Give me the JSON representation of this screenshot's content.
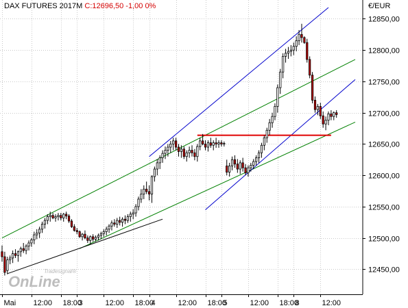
{
  "header": {
    "instrument": "DAX FUTURES 2017M",
    "change_text": "C:12696,50 -1,00 0%"
  },
  "unit_label": "€/EUR",
  "watermark": {
    "small": "Tradesignal®",
    "big": "OnLine"
  },
  "colors": {
    "candle_up": "#ffffff",
    "candle_down": "#c00000",
    "channel_green": "#008000",
    "channel_blue": "#0000cc",
    "support": "#e00000",
    "trend": "#000000",
    "grid": "#c8c8c8"
  },
  "chart_data": {
    "type": "candlestick",
    "title": "DAX FUTURES 2017M",
    "ylabel": "€/EUR",
    "ylim": [
      12410,
      12880
    ],
    "yticks": [
      12450,
      12500,
      12550,
      12600,
      12650,
      12700,
      12750,
      12800,
      12850
    ],
    "ytick_labels": [
      "12450,00",
      "12500,00",
      "12550,00",
      "12600,00",
      "12650,00",
      "12700,00",
      "12750,00",
      "12800,00",
      "12850,00"
    ],
    "x_range": [
      0,
      132
    ],
    "xticks": [
      {
        "i": 0,
        "label": "Mai"
      },
      {
        "i": 11,
        "label": "12:00"
      },
      {
        "i": 22,
        "label": "18:00"
      },
      {
        "i": 28,
        "label": "3"
      },
      {
        "i": 38,
        "label": "12:00"
      },
      {
        "i": 49,
        "label": "18:00"
      },
      {
        "i": 55,
        "label": "4"
      },
      {
        "i": 65,
        "label": "12:00"
      },
      {
        "i": 76,
        "label": "18:00"
      },
      {
        "i": 82,
        "label": "5"
      },
      {
        "i": 92,
        "label": "12:00"
      },
      {
        "i": 103,
        "label": "18:00"
      },
      {
        "i": 109,
        "label": "8"
      },
      {
        "i": 119,
        "label": "12:00"
      }
    ],
    "candles": [
      [
        12478,
        12488,
        12462,
        12470
      ],
      [
        12470,
        12478,
        12440,
        12445
      ],
      [
        12448,
        12470,
        12442,
        12465
      ],
      [
        12465,
        12472,
        12458,
        12468
      ],
      [
        12468,
        12480,
        12460,
        12475
      ],
      [
        12475,
        12482,
        12468,
        12472
      ],
      [
        12472,
        12480,
        12462,
        12478
      ],
      [
        12478,
        12486,
        12470,
        12483
      ],
      [
        12483,
        12492,
        12476,
        12480
      ],
      [
        12480,
        12490,
        12474,
        12487
      ],
      [
        12487,
        12496,
        12480,
        12492
      ],
      [
        12492,
        12500,
        12486,
        12497
      ],
      [
        12497,
        12510,
        12490,
        12505
      ],
      [
        12505,
        12514,
        12498,
        12508
      ],
      [
        12508,
        12518,
        12500,
        12514
      ],
      [
        12514,
        12526,
        12508,
        12522
      ],
      [
        12522,
        12532,
        12515,
        12528
      ],
      [
        12528,
        12538,
        12522,
        12534
      ],
      [
        12534,
        12542,
        12526,
        12536
      ],
      [
        12536,
        12540,
        12530,
        12532
      ],
      [
        12532,
        12538,
        12526,
        12534
      ],
      [
        12534,
        12540,
        12528,
        12536
      ],
      [
        12536,
        12540,
        12528,
        12532
      ],
      [
        12532,
        12540,
        12526,
        12538
      ],
      [
        12538,
        12542,
        12530,
        12535
      ],
      [
        12535,
        12538,
        12524,
        12527
      ],
      [
        12527,
        12530,
        12516,
        12518
      ],
      [
        12518,
        12522,
        12510,
        12512
      ],
      [
        12512,
        12516,
        12506,
        12510
      ],
      [
        12510,
        12512,
        12500,
        12502
      ],
      [
        12502,
        12508,
        12496,
        12506
      ],
      [
        12506,
        12512,
        12498,
        12500
      ],
      [
        12500,
        12504,
        12492,
        12496
      ],
      [
        12496,
        12504,
        12490,
        12502
      ],
      [
        12502,
        12506,
        12494,
        12498
      ],
      [
        12498,
        12504,
        12494,
        12501
      ],
      [
        12501,
        12507,
        12496,
        12504
      ],
      [
        12504,
        12510,
        12498,
        12507
      ],
      [
        12507,
        12514,
        12502,
        12510
      ],
      [
        12510,
        12518,
        12504,
        12514
      ],
      [
        12514,
        12522,
        12508,
        12519
      ],
      [
        12519,
        12528,
        12512,
        12524
      ],
      [
        12524,
        12530,
        12518,
        12522
      ],
      [
        12522,
        12532,
        12516,
        12528
      ],
      [
        12528,
        12534,
        12520,
        12525
      ],
      [
        12525,
        12533,
        12518,
        12530
      ],
      [
        12530,
        12536,
        12522,
        12528
      ],
      [
        12528,
        12538,
        12524,
        12534
      ],
      [
        12534,
        12542,
        12526,
        12538
      ],
      [
        12538,
        12546,
        12530,
        12540
      ],
      [
        12540,
        12554,
        12534,
        12550
      ],
      [
        12550,
        12566,
        12544,
        12562
      ],
      [
        12562,
        12578,
        12556,
        12570
      ],
      [
        12570,
        12584,
        12562,
        12578
      ],
      [
        12578,
        12590,
        12570,
        12574
      ],
      [
        12574,
        12584,
        12560,
        12570
      ],
      [
        12570,
        12600,
        12556,
        12598
      ],
      [
        12598,
        12614,
        12590,
        12610
      ],
      [
        12610,
        12626,
        12600,
        12620
      ],
      [
        12620,
        12632,
        12610,
        12628
      ],
      [
        12628,
        12640,
        12620,
        12635
      ],
      [
        12635,
        12646,
        12626,
        12640
      ],
      [
        12640,
        12650,
        12630,
        12645
      ],
      [
        12645,
        12655,
        12636,
        12650
      ],
      [
        12650,
        12660,
        12640,
        12655
      ],
      [
        12655,
        12660,
        12640,
        12645
      ],
      [
        12645,
        12650,
        12630,
        12638
      ],
      [
        12638,
        12648,
        12628,
        12642
      ],
      [
        12642,
        12646,
        12626,
        12630
      ],
      [
        12630,
        12640,
        12622,
        12636
      ],
      [
        12636,
        12646,
        12628,
        12640
      ],
      [
        12640,
        12648,
        12630,
        12636
      ],
      [
        12636,
        12642,
        12624,
        12630
      ],
      [
        12630,
        12650,
        12622,
        12646
      ],
      [
        12646,
        12660,
        12640,
        12655
      ],
      [
        12655,
        12666,
        12648,
        12650
      ],
      [
        12650,
        12656,
        12640,
        12645
      ],
      [
        12645,
        12656,
        12638,
        12652
      ],
      [
        12652,
        12660,
        12644,
        12648
      ],
      [
        12648,
        12656,
        12640,
        12652
      ],
      [
        12652,
        12660,
        12644,
        12650
      ],
      [
        12650,
        12656,
        12644,
        12652
      ],
      [
        12652,
        12656,
        12646,
        12650
      ],
      [
        12650,
        12654,
        12646,
        12651
      ],
      [
        12615,
        12625,
        12600,
        12605
      ],
      [
        12605,
        12620,
        12598,
        12615
      ],
      [
        12615,
        12630,
        12608,
        12625
      ],
      [
        12625,
        12632,
        12612,
        12618
      ],
      [
        12618,
        12626,
        12604,
        12610
      ],
      [
        12610,
        12624,
        12602,
        12620
      ],
      [
        12620,
        12628,
        12606,
        12612
      ],
      [
        12612,
        12618,
        12600,
        12604
      ],
      [
        12604,
        12616,
        12598,
        12612
      ],
      [
        12612,
        12620,
        12606,
        12616
      ],
      [
        12616,
        12626,
        12610,
        12622
      ],
      [
        12622,
        12632,
        12616,
        12628
      ],
      [
        12628,
        12640,
        12620,
        12636
      ],
      [
        12636,
        12652,
        12628,
        12648
      ],
      [
        12648,
        12664,
        12640,
        12660
      ],
      [
        12660,
        12676,
        12652,
        12672
      ],
      [
        12672,
        12690,
        12664,
        12684
      ],
      [
        12684,
        12700,
        12676,
        12694
      ],
      [
        12694,
        12715,
        12688,
        12710
      ],
      [
        12710,
        12745,
        12700,
        12740
      ],
      [
        12740,
        12770,
        12730,
        12765
      ],
      [
        12765,
        12795,
        12755,
        12790
      ],
      [
        12790,
        12802,
        12780,
        12795
      ],
      [
        12795,
        12805,
        12786,
        12798
      ],
      [
        12798,
        12808,
        12790,
        12800
      ],
      [
        12800,
        12812,
        12792,
        12806
      ],
      [
        12806,
        12822,
        12798,
        12815
      ],
      [
        12815,
        12832,
        12808,
        12825
      ],
      [
        12825,
        12842,
        12812,
        12820
      ],
      [
        12820,
        12822,
        12810,
        12812
      ],
      [
        12812,
        12818,
        12780,
        12785
      ],
      [
        12785,
        12790,
        12755,
        12760
      ],
      [
        12760,
        12765,
        12715,
        12720
      ],
      [
        12720,
        12726,
        12700,
        12705
      ],
      [
        12705,
        12714,
        12696,
        12710
      ],
      [
        12710,
        12716,
        12690,
        12695
      ],
      [
        12695,
        12702,
        12676,
        12682
      ],
      [
        12682,
        12694,
        12672,
        12688
      ],
      [
        12688,
        12702,
        12680,
        12698
      ],
      [
        12698,
        12704,
        12688,
        12694
      ],
      [
        12694,
        12702,
        12688,
        12700
      ],
      [
        12700,
        12704,
        12692,
        12697
      ]
    ],
    "annotations": [
      {
        "name": "green-channel-upper",
        "color": "green",
        "from": [
          0,
          12500
        ],
        "to": [
          132,
          12785
        ]
      },
      {
        "name": "green-channel-lower",
        "color": "green",
        "from": [
          29,
          12483
        ],
        "to": [
          132,
          12685
        ]
      },
      {
        "name": "blue-channel-upper",
        "color": "blue",
        "from": [
          55,
          12630
        ],
        "to": [
          122,
          12868
        ]
      },
      {
        "name": "blue-channel-lower",
        "color": "blue",
        "from": [
          76,
          12545
        ],
        "to": [
          132,
          12753
        ]
      },
      {
        "name": "black-trendline",
        "color": "black",
        "from": [
          2,
          12443
        ],
        "to": [
          60,
          12530
        ]
      },
      {
        "name": "support-line",
        "color": "red",
        "from": [
          73,
          12664
        ],
        "to": [
          123,
          12664
        ]
      }
    ]
  }
}
